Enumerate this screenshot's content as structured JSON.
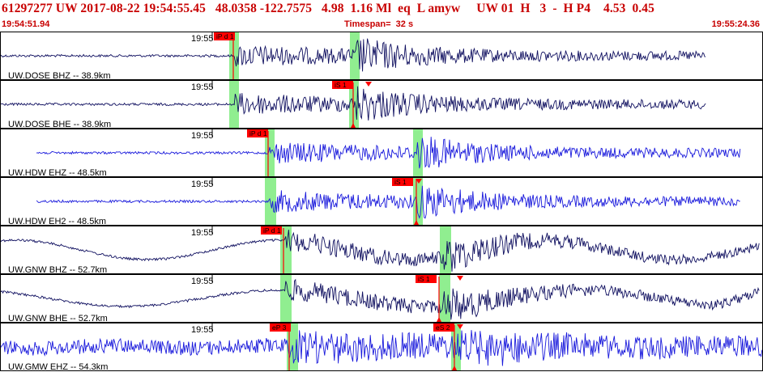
{
  "header": {
    "title": "61297277 UW 2017-08-22 19:54:55.45   48.0358 -122.7575   4.98  1.16 Ml  eq  L amyw     UW 01  H   3  -  H P4    4.53  0.45",
    "start_time": "19:54:51.94",
    "timespan": "Timespan=  32 s",
    "end_time": "19:55:24.36"
  },
  "colors": {
    "header_text": "#c80000",
    "panel_border": "#000000",
    "label_text": "#000000",
    "pick_red": "#ff0000",
    "window_green": "#90ee90",
    "trace_dark": "#101060",
    "trace_blue": "#1a1adc"
  },
  "traces": [
    {
      "label": "UW.DOSE BHZ -- 38.9km",
      "time_mark": "19:55",
      "color": "trace_dark",
      "picks": [
        {
          "text": "iP d 1",
          "arrow": false
        }
      ]
    },
    {
      "label": "UW.DOSE BHE -- 38.9km",
      "time_mark": "19:55",
      "color": "trace_dark",
      "picks": [
        {
          "text": "iS 1",
          "arrow": true
        }
      ]
    },
    {
      "label": "UW.HDW EHZ -- 48.5km",
      "time_mark": "19:55",
      "color": "trace_blue",
      "picks": [
        {
          "text": "iP d 1",
          "arrow": false
        }
      ]
    },
    {
      "label": "UW.HDW EH2 -- 48.5km",
      "time_mark": "19:55",
      "color": "trace_blue",
      "picks": [
        {
          "text": "iS 1",
          "arrow": true
        }
      ]
    },
    {
      "label": "UW.GNW BHZ -- 52.7km",
      "time_mark": "19:55",
      "color": "trace_dark",
      "picks": [
        {
          "text": "iP d 1",
          "arrow": false
        }
      ]
    },
    {
      "label": "UW.GNW BHE -- 52.7km",
      "time_mark": "19:55",
      "color": "trace_dark",
      "picks": [
        {
          "text": "iS 1",
          "arrow": true
        }
      ]
    },
    {
      "label": "UW.GMW EHZ -- 54.3km",
      "time_mark": "19:55",
      "color": "trace_blue",
      "picks": [
        {
          "text": "eP 3",
          "arrow": false
        },
        {
          "text": "eS 2",
          "arrow": true
        }
      ]
    }
  ]
}
